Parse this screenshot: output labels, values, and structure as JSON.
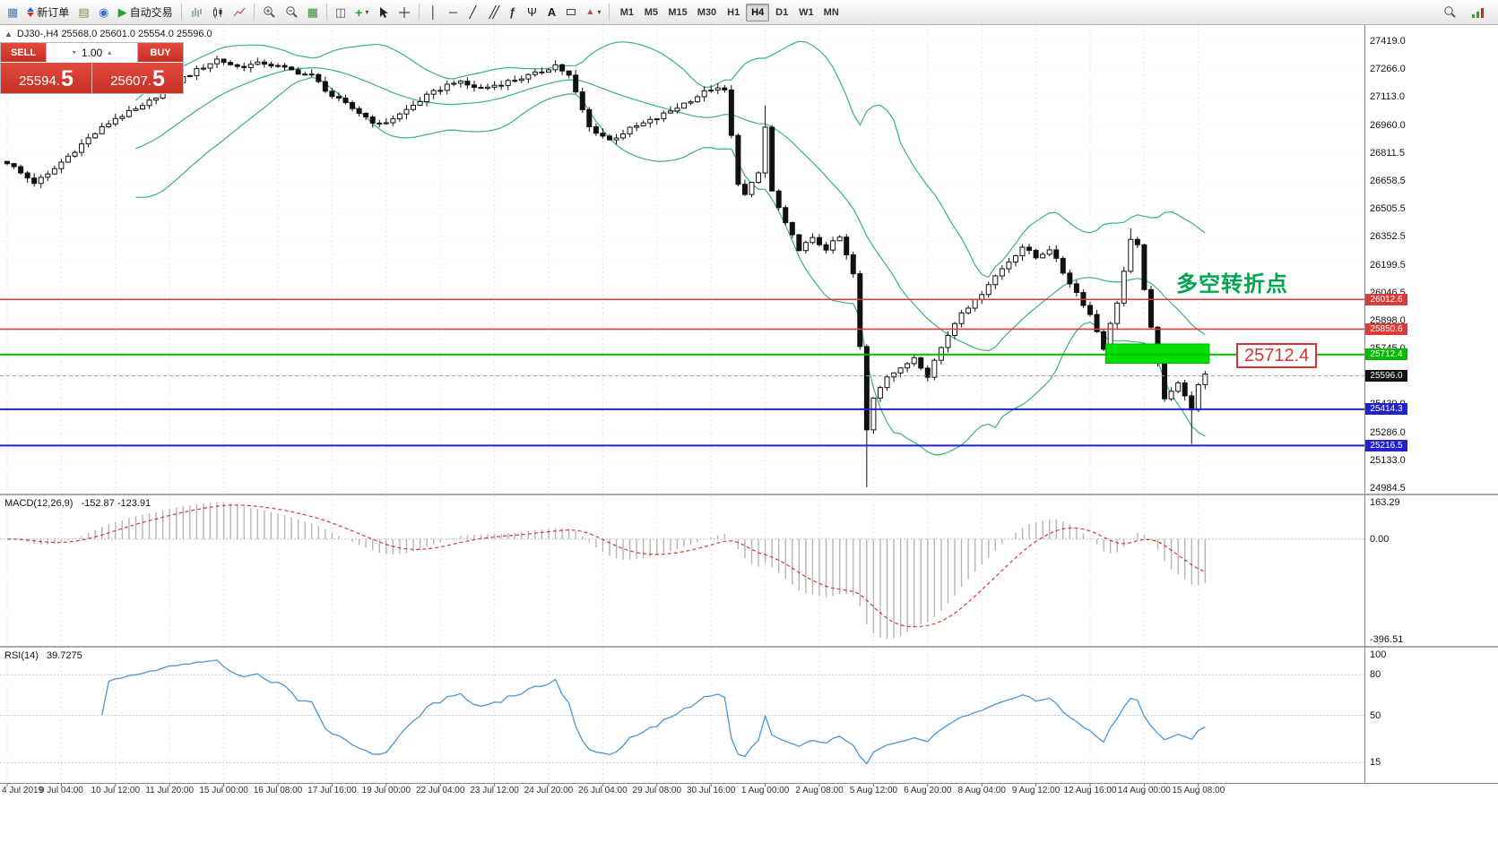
{
  "toolbar": {
    "new_order_label": "新订单",
    "autotrading_label": "自动交易",
    "timeframes": [
      "M1",
      "M5",
      "M15",
      "M30",
      "H1",
      "H4",
      "D1",
      "W1",
      "MN"
    ],
    "active_timeframe": "H4"
  },
  "order_panel": {
    "sell_label": "SELL",
    "buy_label": "BUY",
    "volume": "1.00",
    "sell_price_main": "25594.",
    "sell_price_big": "5",
    "buy_price_main": "25607.",
    "buy_price_big": "5"
  },
  "chart": {
    "symbol_ohlc": "DJ30-,H4  25568.0 25601.0 25554.0 25596.0",
    "annotation_text": "多空转折点",
    "level_label": "25712.4",
    "price_axis_labels": [
      "27419.0",
      "27266.0",
      "27113.0",
      "26960.0",
      "26811.5",
      "26658.5",
      "26505.5",
      "26352.5",
      "26199.5",
      "26046.5",
      "25898.0",
      "25745.0",
      "25592.0",
      "25439.0",
      "25286.0",
      "25133.0",
      "24984.5"
    ],
    "levels": [
      {
        "price": 26012.6,
        "tag": "26012.6",
        "color": "#dd3a3a",
        "width": 1.6
      },
      {
        "price": 25850.6,
        "tag": "25850.6",
        "color": "#dd3a3a",
        "width": 1.6
      },
      {
        "price": 25712.4,
        "tag": "25712.4",
        "color": "#00bb00",
        "width": 2
      },
      {
        "price": 25414.3,
        "tag": "25414.3",
        "color": "#2222cc",
        "width": 2
      },
      {
        "price": 25216.5,
        "tag": "25216.5",
        "color": "#2222cc",
        "width": 2
      }
    ],
    "current_price": {
      "value": 25596.0,
      "tag": "25596.0"
    }
  },
  "macd": {
    "name": "MACD(12,26,9)",
    "values": "-152.87 -123.91",
    "axis_max": "163.29",
    "axis_zero": "0.00",
    "axis_min": "-396.51"
  },
  "rsi": {
    "name": "RSI(14)",
    "value": "39.7275",
    "levels": [
      80,
      50,
      15
    ],
    "axis_labels": [
      {
        "v": 100,
        "t": "100"
      },
      {
        "v": 80,
        "t": "80"
      },
      {
        "v": 50,
        "t": "50"
      },
      {
        "v": 15,
        "t": "15"
      }
    ]
  },
  "time_axis_labels": [
    "4 Jul 2019",
    "9 Jul 04:00",
    "10 Jul 12:00",
    "11 Jul 20:00",
    "15 Jul 00:00",
    "16 Jul 08:00",
    "17 Jul 16:00",
    "19 Jul 00:00",
    "22 Jul 04:00",
    "23 Jul 12:00",
    "24 Jul 20:00",
    "26 Jul 04:00",
    "29 Jul 08:00",
    "30 Jul 16:00",
    "1 Aug 00:00",
    "2 Aug 08:00",
    "5 Aug 12:00",
    "6 Aug 20:00",
    "8 Aug 04:00",
    "9 Aug 12:00",
    "12 Aug 16:00",
    "14 Aug 00:00",
    "15 Aug 08:00"
  ],
  "chart_data": {
    "type": "candlestick",
    "symbol": "DJ30-",
    "timeframe": "H4",
    "ohlc_current": {
      "open": 25568.0,
      "high": 25601.0,
      "low": 25554.0,
      "close": 25596.0
    },
    "price_range": {
      "max": 27507,
      "min": 24955
    },
    "candle_count": 178,
    "close_waypoints": [
      [
        0,
        26760
      ],
      [
        2,
        26700
      ],
      [
        4,
        26650
      ],
      [
        6,
        26690
      ],
      [
        8,
        26760
      ],
      [
        12,
        26890
      ],
      [
        16,
        27000
      ],
      [
        20,
        27060
      ],
      [
        24,
        27180
      ],
      [
        28,
        27260
      ],
      [
        31,
        27320
      ],
      [
        34,
        27280
      ],
      [
        38,
        27300
      ],
      [
        42,
        27260
      ],
      [
        45,
        27230
      ],
      [
        48,
        27120
      ],
      [
        52,
        27030
      ],
      [
        55,
        26960
      ],
      [
        58,
        27020
      ],
      [
        62,
        27120
      ],
      [
        66,
        27200
      ],
      [
        70,
        27160
      ],
      [
        74,
        27200
      ],
      [
        78,
        27240
      ],
      [
        81,
        27290
      ],
      [
        83,
        27230
      ],
      [
        86,
        26950
      ],
      [
        89,
        26880
      ],
      [
        92,
        26940
      ],
      [
        96,
        27000
      ],
      [
        100,
        27080
      ],
      [
        104,
        27160
      ],
      [
        106,
        27150
      ],
      [
        107,
        26900
      ],
      [
        108,
        26650
      ],
      [
        109,
        26580
      ],
      [
        111,
        26700
      ],
      [
        112,
        26950
      ],
      [
        113,
        26600
      ],
      [
        115,
        26420
      ],
      [
        117,
        26290
      ],
      [
        119,
        26340
      ],
      [
        121,
        26290
      ],
      [
        123,
        26350
      ],
      [
        125,
        26150
      ],
      [
        126,
        25750
      ],
      [
        127,
        25300
      ],
      [
        128,
        25480
      ],
      [
        130,
        25600
      ],
      [
        132,
        25630
      ],
      [
        134,
        25700
      ],
      [
        136,
        25600
      ],
      [
        137,
        25680
      ],
      [
        139,
        25820
      ],
      [
        141,
        25950
      ],
      [
        143,
        26000
      ],
      [
        145,
        26100
      ],
      [
        147,
        26180
      ],
      [
        150,
        26300
      ],
      [
        152,
        26240
      ],
      [
        154,
        26290
      ],
      [
        156,
        26160
      ],
      [
        158,
        26050
      ],
      [
        160,
        25930
      ],
      [
        162,
        25750
      ],
      [
        164,
        26000
      ],
      [
        166,
        26330
      ],
      [
        167,
        26300
      ],
      [
        169,
        25850
      ],
      [
        171,
        25480
      ],
      [
        172,
        25520
      ],
      [
        173,
        25560
      ],
      [
        174,
        25480
      ],
      [
        175,
        25420
      ],
      [
        176,
        25540
      ],
      [
        177,
        25596
      ]
    ],
    "special_wicks": [
      {
        "idx": 127,
        "low": 24990
      },
      {
        "idx": 175,
        "low": 25225
      },
      {
        "idx": 112,
        "high": 27070
      },
      {
        "idx": 166,
        "high": 26400
      }
    ],
    "bollinger": {
      "period": 20,
      "deviation": 2
    },
    "green_zone": {
      "i1": 162.3,
      "i2": 177.6,
      "price_top": 25770,
      "price_bottom": 25665,
      "color": "#00e000"
    },
    "colors": {
      "bollinger": "#3cb371",
      "candle_up": "#ffffff",
      "candle_down": "#111111",
      "macd_histogram": "#b5b5b5",
      "macd_signal": "#d23b2f",
      "rsi_line": "#4a96d2",
      "grid": "#e6e6e6"
    }
  }
}
